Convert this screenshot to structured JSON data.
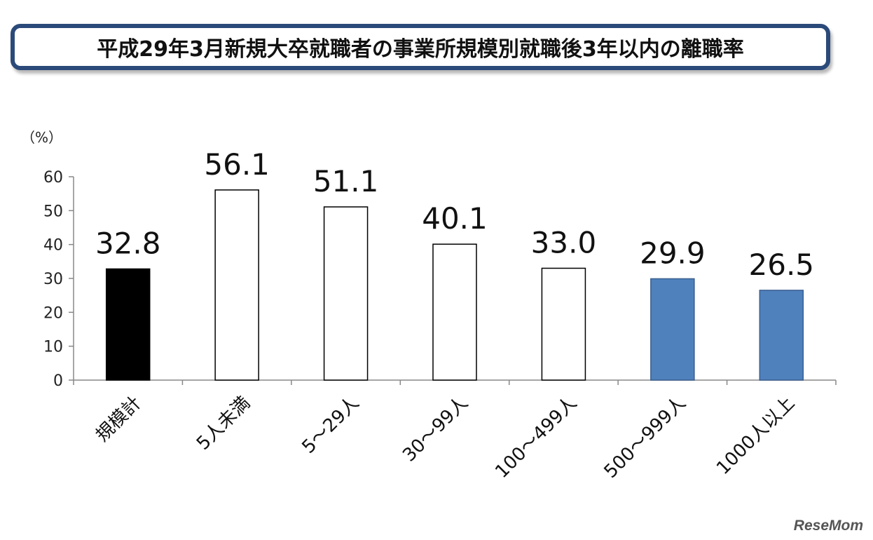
{
  "title": "平成29年3月新規大卒就職者の事業所規模別就職後3年以内の離職率",
  "watermark": "ReseMom",
  "chart_data": {
    "type": "bar",
    "unit_label": "（%）",
    "categories": [
      "規模計",
      "5人未満",
      "5～29人",
      "30～99人",
      "100～499人",
      "500～999人",
      "1000人以上"
    ],
    "values": [
      32.8,
      56.1,
      51.1,
      40.1,
      33.0,
      29.9,
      26.5
    ],
    "value_labels": [
      "32.8",
      "56.1",
      "51.1",
      "40.1",
      "33.0",
      "29.9",
      "26.5"
    ],
    "bar_fills": [
      "#000000",
      "#ffffff",
      "#ffffff",
      "#ffffff",
      "#ffffff",
      "#4f81bd",
      "#4f81bd"
    ],
    "bar_strokes": [
      "#000000",
      "#000000",
      "#000000",
      "#000000",
      "#000000",
      "#3a5f8f",
      "#3a5f8f"
    ],
    "ylim": [
      0,
      60
    ],
    "yticks": [
      0,
      10,
      20,
      30,
      40,
      50,
      60
    ],
    "grid": false,
    "legend": "none"
  }
}
